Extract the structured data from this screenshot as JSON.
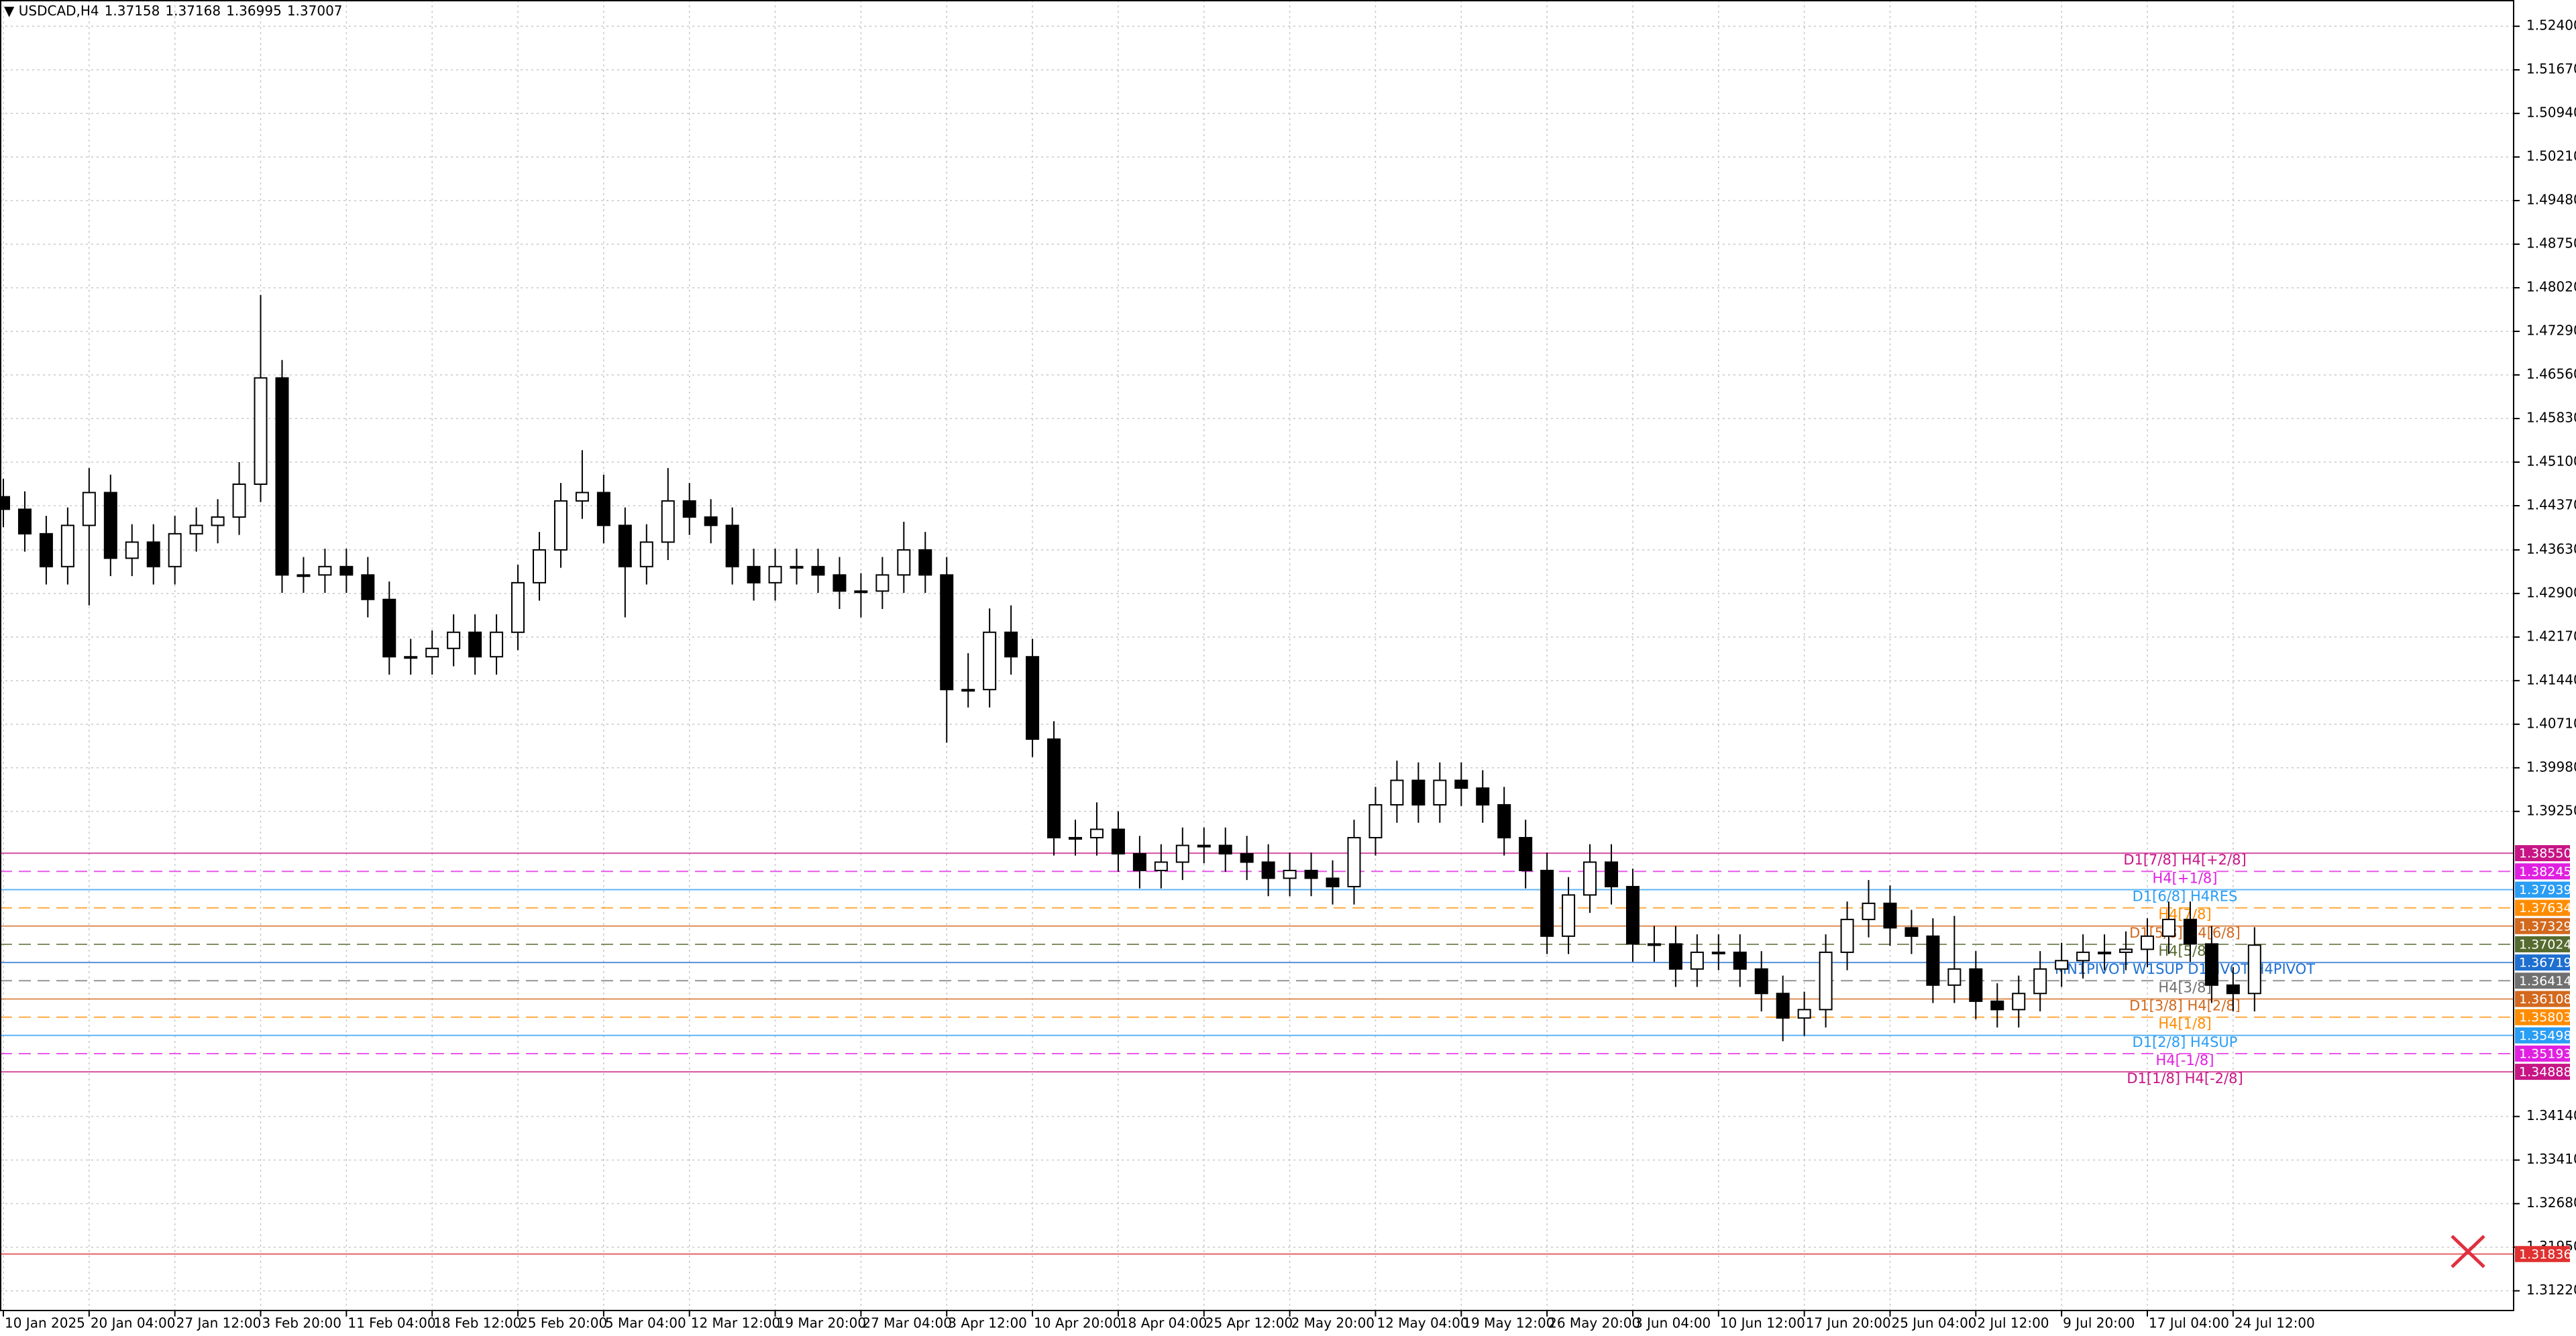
{
  "chart_data": {
    "type": "candlestick",
    "symbol": "USDCAD,H4",
    "quote": [
      "1.37158",
      "1.37168",
      "1.36995",
      "1.37007"
    ],
    "categories": [
      "10 Jan 2025",
      null,
      null,
      null,
      "20 Jan 04:00",
      null,
      null,
      null,
      "27 Jan 12:00",
      null,
      null,
      null,
      "3 Feb 20:00",
      null,
      null,
      null,
      "11 Feb 04:00",
      null,
      null,
      null,
      "18 Feb 12:00",
      null,
      null,
      null,
      "25 Feb 20:00",
      null,
      null,
      null,
      "5 Mar 04:00",
      null,
      null,
      null,
      "12 Mar 12:00",
      null,
      null,
      null,
      "19 Mar 20:00",
      null,
      null,
      null,
      "27 Mar 04:00",
      null,
      null,
      null,
      "3 Apr 12:00",
      null,
      null,
      null,
      "10 Apr 20:00",
      null,
      null,
      null,
      "18 Apr 04:00",
      null,
      null,
      null,
      "25 Apr 12:00",
      null,
      null,
      null,
      "2 May 20:00",
      null,
      null,
      null,
      "12 May 04:00",
      null,
      null,
      null,
      "19 May 12:00",
      null,
      null,
      null,
      "26 May 20:00",
      null,
      null,
      null,
      "3 Jun 04:00",
      null,
      null,
      null,
      "10 Jun 12:00",
      null,
      null,
      null,
      "17 Jun 20:00",
      null,
      null,
      null,
      "25 Jun 04:00",
      null,
      null,
      null,
      "2 Jul 12:00",
      null,
      null,
      null,
      "9 Jul 20:00",
      null,
      null,
      null,
      "17 Jul 04:00",
      null,
      null,
      null,
      "24 Jul 12:00",
      null
    ],
    "open": [
      1.4452,
      1.4431,
      1.439,
      1.4335,
      1.4404,
      1.4459,
      1.4349,
      1.4376,
      1.4335,
      1.439,
      1.4404,
      1.4418,
      1.4473,
      1.4651,
      1.4321,
      1.4321,
      1.4335,
      1.4321,
      1.428,
      1.4184,
      1.4184,
      1.4198,
      1.4225,
      1.4184,
      1.4225,
      1.4308,
      1.4363,
      1.4445,
      1.4459,
      1.4404,
      1.4335,
      1.4376,
      1.4445,
      1.4418,
      1.4404,
      1.4335,
      1.4308,
      1.4335,
      1.4335,
      1.4321,
      1.4294,
      1.4294,
      1.4321,
      1.4363,
      1.4321,
      1.4129,
      1.4129,
      1.4225,
      1.4184,
      1.4046,
      1.3881,
      1.3881,
      1.3895,
      1.3854,
      1.3826,
      1.384,
      1.3868,
      1.3868,
      1.3854,
      1.384,
      1.3813,
      1.3826,
      1.3813,
      1.3799,
      1.3881,
      1.3936,
      1.3977,
      1.3936,
      1.3977,
      1.3964,
      1.3936,
      1.3881,
      1.3826,
      1.3716,
      1.3785,
      1.384,
      1.3799,
      1.3703,
      1.3703,
      1.3661,
      1.3689,
      1.3689,
      1.3661,
      1.362,
      1.3579,
      1.3593,
      1.3689,
      1.3744,
      1.3771,
      1.373,
      1.3716,
      1.3634,
      1.3661,
      1.3607,
      1.3593,
      1.362,
      1.3661,
      1.3675,
      1.3689,
      1.3689,
      1.3694,
      1.3716,
      1.3744,
      1.3703,
      1.3634,
      1.362
    ],
    "high": [
      1.4482,
      1.4461,
      1.442,
      1.4434,
      1.45,
      1.4489,
      1.4406,
      1.4406,
      1.442,
      1.4434,
      1.4448,
      1.451,
      1.479,
      1.4681,
      1.4351,
      1.4365,
      1.4365,
      1.4351,
      1.431,
      1.4214,
      1.4228,
      1.4255,
      1.4255,
      1.4255,
      1.4338,
      1.4393,
      1.4475,
      1.453,
      1.4489,
      1.4434,
      1.4406,
      1.45,
      1.4475,
      1.4448,
      1.4434,
      1.4365,
      1.4365,
      1.4365,
      1.4365,
      1.4351,
      1.4324,
      1.4351,
      1.441,
      1.4393,
      1.4351,
      1.419,
      1.4265,
      1.427,
      1.4214,
      1.4076,
      1.3911,
      1.394,
      1.3925,
      1.3884,
      1.387,
      1.3898,
      1.3898,
      1.3898,
      1.3884,
      1.387,
      1.3856,
      1.3856,
      1.3843,
      1.3911,
      1.3966,
      1.401,
      1.4007,
      1.4007,
      1.4007,
      1.3994,
      1.3966,
      1.3911,
      1.3856,
      1.3815,
      1.387,
      1.387,
      1.3829,
      1.3733,
      1.3733,
      1.3719,
      1.3719,
      1.3719,
      1.3691,
      1.365,
      1.3623,
      1.3719,
      1.3774,
      1.381,
      1.3801,
      1.376,
      1.3746,
      1.375,
      1.3691,
      1.3637,
      1.365,
      1.3691,
      1.3705,
      1.3719,
      1.3719,
      1.3724,
      1.3746,
      1.3774,
      1.3774,
      1.3733,
      1.3664,
      1.3731
    ],
    "low": [
      1.4401,
      1.436,
      1.4305,
      1.4305,
      1.427,
      1.4319,
      1.4319,
      1.4305,
      1.4305,
      1.436,
      1.4374,
      1.4388,
      1.4443,
      1.4291,
      1.4291,
      1.4291,
      1.4291,
      1.425,
      1.4154,
      1.4154,
      1.4154,
      1.4168,
      1.4154,
      1.4154,
      1.4195,
      1.4278,
      1.4333,
      1.4415,
      1.4374,
      1.425,
      1.4305,
      1.4346,
      1.4388,
      1.4374,
      1.4305,
      1.4278,
      1.4278,
      1.4305,
      1.4291,
      1.4264,
      1.425,
      1.4264,
      1.4291,
      1.4291,
      1.404,
      1.4099,
      1.4099,
      1.4154,
      1.4016,
      1.3851,
      1.3851,
      1.3851,
      1.3824,
      1.3796,
      1.3796,
      1.381,
      1.3838,
      1.3824,
      1.381,
      1.3783,
      1.3783,
      1.3783,
      1.3769,
      1.3769,
      1.3851,
      1.3906,
      1.3906,
      1.3906,
      1.3934,
      1.3906,
      1.3851,
      1.3796,
      1.3686,
      1.3686,
      1.3755,
      1.3769,
      1.3673,
      1.3673,
      1.3631,
      1.3631,
      1.3659,
      1.3631,
      1.359,
      1.354,
      1.3549,
      1.3563,
      1.3659,
      1.3714,
      1.37,
      1.3686,
      1.3604,
      1.3604,
      1.3577,
      1.3563,
      1.3563,
      1.359,
      1.3631,
      1.3645,
      1.3659,
      1.3659,
      1.3664,
      1.3686,
      1.3673,
      1.3604,
      1.359,
      1.359
    ],
    "close": [
      1.4431,
      1.439,
      1.4335,
      1.4404,
      1.4459,
      1.4349,
      1.4376,
      1.4335,
      1.439,
      1.4404,
      1.4418,
      1.4473,
      1.4651,
      1.4321,
      1.4321,
      1.4335,
      1.4321,
      1.428,
      1.4184,
      1.4184,
      1.4198,
      1.4225,
      1.4184,
      1.4225,
      1.4308,
      1.4363,
      1.4445,
      1.4459,
      1.4404,
      1.4335,
      1.4376,
      1.4445,
      1.4418,
      1.4404,
      1.4335,
      1.4308,
      1.4335,
      1.4335,
      1.4321,
      1.4294,
      1.4294,
      1.4321,
      1.4363,
      1.4321,
      1.4129,
      1.4129,
      1.4225,
      1.4184,
      1.4046,
      1.3881,
      1.3881,
      1.3895,
      1.3854,
      1.3826,
      1.384,
      1.3868,
      1.3868,
      1.3854,
      1.384,
      1.3813,
      1.3826,
      1.3813,
      1.3799,
      1.3881,
      1.3936,
      1.3977,
      1.3936,
      1.3977,
      1.3964,
      1.3936,
      1.3881,
      1.3826,
      1.3716,
      1.3785,
      1.384,
      1.3799,
      1.3703,
      1.3703,
      1.3661,
      1.3689,
      1.3689,
      1.3661,
      1.362,
      1.3579,
      1.3593,
      1.3689,
      1.3744,
      1.3771,
      1.373,
      1.3716,
      1.3634,
      1.3661,
      1.3607,
      1.3593,
      1.362,
      1.3661,
      1.3675,
      1.3689,
      1.3689,
      1.3694,
      1.3716,
      1.3744,
      1.3703,
      1.3634,
      1.362,
      1.3701
    ],
    "up_color": "#ffffff",
    "down_color": "#000000",
    "wick_color": "#000000",
    "ylim": [
      1.3089,
      1.5284
    ],
    "yticks": [
      {
        "value": 1.524,
        "label": "1.52400"
      },
      {
        "value": 1.5167,
        "label": "1.51670"
      },
      {
        "value": 1.5094,
        "label": "1.50940"
      },
      {
        "value": 1.5021,
        "label": "1.50210"
      },
      {
        "value": 1.4948,
        "label": "1.49480"
      },
      {
        "value": 1.4875,
        "label": "1.48750"
      },
      {
        "value": 1.4802,
        "label": "1.48020"
      },
      {
        "value": 1.4729,
        "label": "1.47290"
      },
      {
        "value": 1.4656,
        "label": "1.46560"
      },
      {
        "value": 1.4583,
        "label": "1.45830"
      },
      {
        "value": 1.451,
        "label": "1.45100"
      },
      {
        "value": 1.4437,
        "label": "1.44370"
      },
      {
        "value": 1.4363,
        "label": "1.43630"
      },
      {
        "value": 1.429,
        "label": "1.42900"
      },
      {
        "value": 1.4217,
        "label": "1.42170"
      },
      {
        "value": 1.4144,
        "label": "1.41440"
      },
      {
        "value": 1.4071,
        "label": "1.40710"
      },
      {
        "value": 1.3998,
        "label": "1.39980"
      },
      {
        "value": 1.3925,
        "label": "1.39250"
      },
      {
        "value": 1.3414,
        "label": "1.34140"
      },
      {
        "value": 1.3341,
        "label": "1.33410"
      },
      {
        "value": 1.3268,
        "label": "1.32680"
      },
      {
        "value": 1.3195,
        "label": "1.31950"
      },
      {
        "value": 1.3122,
        "label": "1.31220"
      }
    ],
    "grid": true,
    "levels": [
      {
        "price": {
          "value": 1.3855,
          "label": "1.38550"
        },
        "text": "D1[7/8] H4[+2/8]",
        "color": "#c71585",
        "dashed": false
      },
      {
        "price": {
          "value": 1.38245,
          "label": "1.38245"
        },
        "text": "H4[+1/8]",
        "color": "#e020e0",
        "dashed": true
      },
      {
        "price": {
          "value": 1.37939,
          "label": "1.37939"
        },
        "text": "D1[6/8] H4RES",
        "color": "#2a9df4",
        "dashed": false
      },
      {
        "price": {
          "value": 1.37634,
          "label": "1.37634"
        },
        "text": "H4[7/8]",
        "color": "#ff8c00",
        "dashed": true
      },
      {
        "price": {
          "value": 1.37329,
          "label": "1.37329"
        },
        "text": "D1[5/8] H4[6/8]",
        "color": "#d2691e",
        "dashed": false
      },
      {
        "price": {
          "value": 1.37024,
          "label": "1.37024"
        },
        "text": "H4[5/8]",
        "color": "#556b2f",
        "dashed": true
      },
      {
        "price": {
          "value": 1.36719,
          "label": "1.36719"
        },
        "text": "MN1PIVOT W1SUP D1PIVOT H4PIVOT",
        "color": "#1e6fd0",
        "dashed": false
      },
      {
        "price": {
          "value": 1.36414,
          "label": "1.36414"
        },
        "text": "H4[3/8]",
        "color": "#707070",
        "dashed": true
      },
      {
        "price": {
          "value": 1.36108,
          "label": "1.36108"
        },
        "text": "D1[3/8] H4[2/8]",
        "color": "#d2691e",
        "dashed": false
      },
      {
        "price": {
          "value": 1.35803,
          "label": "1.35803"
        },
        "text": "H4[1/8]",
        "color": "#ff8c00",
        "dashed": true
      },
      {
        "price": {
          "value": 1.35498,
          "label": "1.35498"
        },
        "text": "D1[2/8] H4SUP",
        "color": "#2a9df4",
        "dashed": false
      },
      {
        "price": {
          "value": 1.35193,
          "label": "1.35193"
        },
        "text": "H4[-1/8]",
        "color": "#e020e0",
        "dashed": true
      },
      {
        "price": {
          "value": 1.34888,
          "label": "1.34888"
        },
        "text": "D1[1/8] H4[-2/8]",
        "color": "#c71585",
        "dashed": false
      },
      {
        "price": {
          "value": 1.31836,
          "label": "1.31836"
        },
        "color": "#e03030",
        "dashed": false
      }
    ]
  }
}
